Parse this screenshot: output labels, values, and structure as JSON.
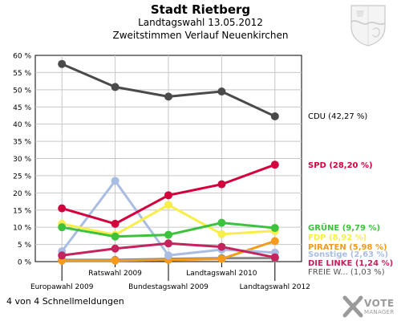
{
  "header": {
    "title": "Stadt Rietberg",
    "subtitle": "Landtagswahl 13.05.2012",
    "subtitle2": "Zweitstimmen Verlauf Neuenkirchen"
  },
  "footer": {
    "note": "4 von 4 Schnellmeldungen"
  },
  "logo": {
    "line1": "VOTE",
    "line2": "MANAGER"
  },
  "chart_data": {
    "type": "line",
    "title": "Stadt Rietberg",
    "x": [
      "Europawahl 2009",
      "Ratswahl 2009",
      "Bundestagswahl 2009",
      "Landtagswahl 2010",
      "Landtagswahl 2012"
    ],
    "x_label_rows": [
      0,
      1,
      0,
      1,
      0
    ],
    "ylim": [
      0,
      60
    ],
    "yticks": [
      "0 %",
      "5 %",
      "10 %",
      "15 %",
      "20 %",
      "25 %",
      "30 %",
      "35 %",
      "40 %",
      "45 %",
      "50 %",
      "55 %",
      "60 %"
    ],
    "grid": true,
    "series": [
      {
        "name": "FREIE W...",
        "label": "FREIE W...  (1,03 %)",
        "color": "#888888",
        "label_color": "#555555",
        "values": [
          0.5,
          0.5,
          0.8,
          1.0,
          1.03
        ]
      },
      {
        "name": "PIRATEN",
        "label": "PIRATEN  (5,98 %)",
        "color": "#f59b1b",
        "label_color": "#f59b1b",
        "values": [
          0.3,
          0.3,
          0.5,
          0.8,
          5.98
        ]
      },
      {
        "name": "Sonstige",
        "label": "Sonstige  (2,63 %)",
        "color": "#a9bde3",
        "label_color": "#a9bde3",
        "values": [
          3.0,
          23.5,
          1.8,
          3.5,
          2.63
        ]
      },
      {
        "name": "DIE LINKE",
        "label": "DIE LINKE  (1,24 %)",
        "color": "#c4235e",
        "label_color": "#c4235e",
        "values": [
          1.8,
          3.8,
          5.3,
          4.3,
          1.24
        ]
      },
      {
        "name": "FDP",
        "label": "FDP  (8,92 %)",
        "color": "#f7ee4a",
        "label_color": "#f7ee4a",
        "values": [
          11.0,
          7.8,
          16.5,
          8.0,
          8.92
        ]
      },
      {
        "name": "GRÜNE",
        "label": "GRÜNE  (9,79 %)",
        "color": "#3cc23c",
        "label_color": "#3cc23c",
        "values": [
          10.0,
          7.3,
          7.8,
          11.3,
          9.79
        ]
      },
      {
        "name": "SPD",
        "label": "SPD  (28,20 %)",
        "color": "#d4003d",
        "label_color": "#d4003d",
        "values": [
          15.5,
          11.0,
          19.3,
          22.5,
          28.2
        ]
      },
      {
        "name": "CDU",
        "label": "CDU  (42,27 %)",
        "color": "#4a4a4a",
        "label_color": "#000000",
        "values": [
          57.5,
          50.8,
          48.0,
          49.5,
          42.27
        ]
      }
    ]
  }
}
